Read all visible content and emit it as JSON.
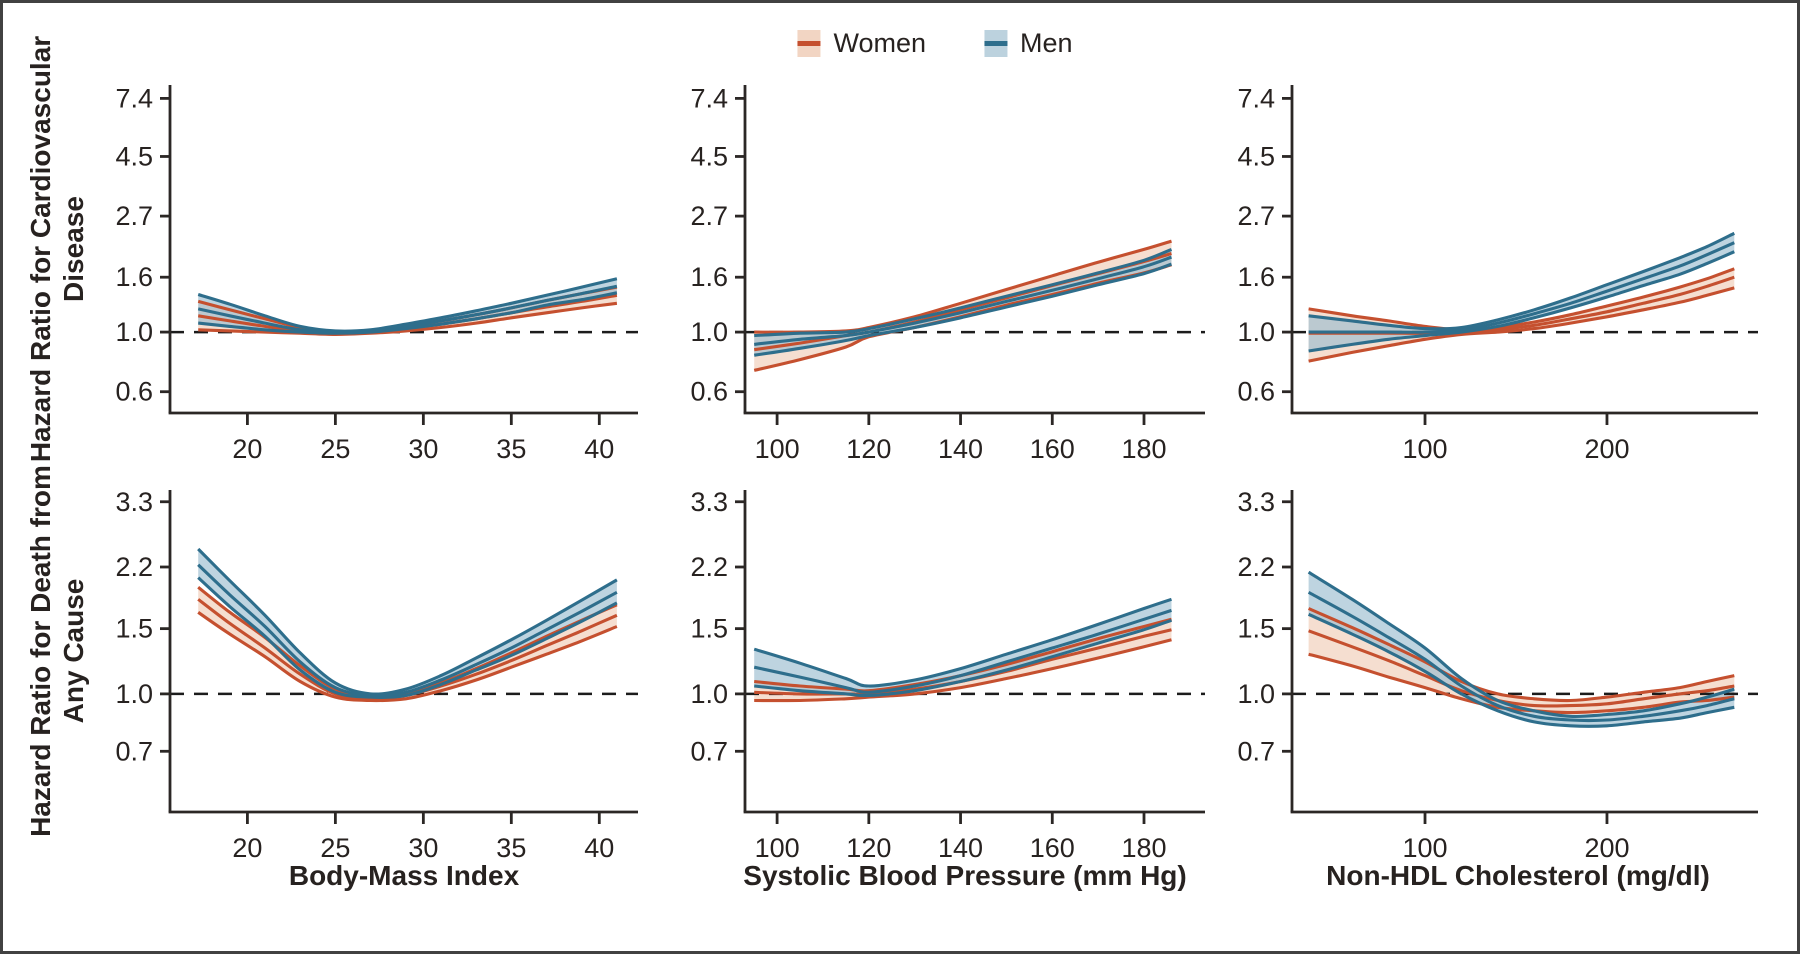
{
  "legend": {
    "items": [
      {
        "label": "Women",
        "line": "#c5502f",
        "fill": "#f2d5c3"
      },
      {
        "label": "Men",
        "line": "#2e6e8c",
        "fill": "#bcd2de"
      }
    ]
  },
  "row_labels": [
    "Hazard Ratio for Cardiovascular\nDisease",
    "Hazard Ratio for Death from\nAny Cause"
  ],
  "reference_line_value": "1.0",
  "chart_data": [
    {
      "name": "cvd-bmi",
      "type": "line",
      "row": 0,
      "col": 0,
      "xlabel": "",
      "yscale": "log",
      "ref_line": 1.0,
      "x_ticks": [
        20,
        25,
        30,
        35,
        40
      ],
      "y_ticks": [
        7.4,
        4.5,
        2.7,
        1.6,
        1.0,
        0.6
      ],
      "xlim": [
        15.6,
        42.2
      ],
      "ylim": [
        0.5,
        8.3
      ],
      "x": [
        17.2,
        19,
        21,
        23,
        25,
        27,
        29,
        31,
        33,
        35,
        37,
        39,
        41
      ],
      "series": [
        {
          "name": "Women",
          "color": "#c5502f",
          "fill": "#f0cdb8",
          "upper": [
            1.3,
            1.21,
            1.12,
            1.04,
            1.0,
            1.01,
            1.05,
            1.1,
            1.16,
            1.23,
            1.31,
            1.39,
            1.47
          ],
          "center": [
            1.15,
            1.1,
            1.05,
            1.01,
            0.99,
            1.0,
            1.03,
            1.07,
            1.12,
            1.18,
            1.24,
            1.3,
            1.37
          ],
          "lower": [
            1.02,
            1.01,
            1.0,
            0.99,
            0.98,
            0.99,
            1.01,
            1.04,
            1.08,
            1.13,
            1.18,
            1.23,
            1.28
          ]
        },
        {
          "name": "Men",
          "color": "#2e6e8c",
          "fill": "#9cbed0",
          "upper": [
            1.38,
            1.27,
            1.15,
            1.05,
            1.01,
            1.02,
            1.07,
            1.13,
            1.2,
            1.28,
            1.37,
            1.47,
            1.58
          ],
          "center": [
            1.22,
            1.15,
            1.08,
            1.02,
            1.0,
            1.01,
            1.05,
            1.1,
            1.16,
            1.23,
            1.31,
            1.39,
            1.48
          ],
          "lower": [
            1.08,
            1.05,
            1.02,
            1.0,
            0.99,
            1.0,
            1.03,
            1.07,
            1.12,
            1.18,
            1.26,
            1.32,
            1.4
          ]
        }
      ]
    },
    {
      "name": "cvd-sbp",
      "type": "line",
      "row": 0,
      "col": 1,
      "xlabel": "",
      "yscale": "log",
      "ref_line": 1.0,
      "x_ticks": [
        100,
        120,
        140,
        160,
        180
      ],
      "y_ticks": [
        7.4,
        4.5,
        2.7,
        1.6,
        1.0,
        0.6
      ],
      "xlim": [
        93,
        193.3
      ],
      "ylim": [
        0.5,
        8.3
      ],
      "x": [
        95,
        105,
        115,
        120,
        130,
        140,
        150,
        160,
        170,
        180,
        186
      ],
      "series": [
        {
          "name": "Women",
          "color": "#c5502f",
          "fill": "#f0cdb8",
          "upper": [
            1.0,
            1.0,
            1.01,
            1.04,
            1.14,
            1.28,
            1.44,
            1.62,
            1.82,
            2.03,
            2.18
          ],
          "center": [
            0.86,
            0.91,
            0.97,
            1.0,
            1.09,
            1.21,
            1.34,
            1.49,
            1.65,
            1.83,
            1.96
          ],
          "lower": [
            0.72,
            0.79,
            0.88,
            0.96,
            1.04,
            1.14,
            1.26,
            1.38,
            1.52,
            1.66,
            1.78
          ]
        },
        {
          "name": "Men",
          "color": "#2e6e8c",
          "fill": "#9cbed0",
          "upper": [
            0.97,
            0.99,
            1.0,
            1.03,
            1.12,
            1.23,
            1.36,
            1.5,
            1.66,
            1.85,
            2.03
          ],
          "center": [
            0.9,
            0.94,
            0.97,
            1.0,
            1.08,
            1.18,
            1.3,
            1.43,
            1.58,
            1.75,
            1.9
          ],
          "lower": [
            0.82,
            0.87,
            0.93,
            0.97,
            1.04,
            1.13,
            1.24,
            1.36,
            1.5,
            1.65,
            1.79
          ]
        }
      ]
    },
    {
      "name": "cvd-nonhdl",
      "type": "line",
      "row": 0,
      "col": 2,
      "xlabel": "",
      "yscale": "log",
      "ref_line": 1.0,
      "x_ticks": [
        100,
        200
      ],
      "y_ticks": [
        7.4,
        4.5,
        2.7,
        1.6,
        1.0,
        0.6
      ],
      "xlim": [
        26.9,
        283
      ],
      "ylim": [
        0.5,
        8.3
      ],
      "x": [
        36,
        60,
        80,
        100,
        120,
        140,
        160,
        180,
        200,
        220,
        240,
        255,
        270
      ],
      "series": [
        {
          "name": "Women",
          "color": "#c5502f",
          "fill": "#f0cdb8",
          "upper": [
            1.22,
            1.15,
            1.1,
            1.05,
            1.02,
            1.04,
            1.09,
            1.16,
            1.25,
            1.35,
            1.47,
            1.58,
            1.72
          ],
          "center": [
            0.99,
            0.99,
            0.99,
            0.99,
            1.0,
            1.02,
            1.06,
            1.12,
            1.19,
            1.28,
            1.38,
            1.48,
            1.6
          ],
          "lower": [
            0.78,
            0.84,
            0.89,
            0.94,
            0.98,
            1.0,
            1.03,
            1.08,
            1.14,
            1.21,
            1.29,
            1.37,
            1.46
          ]
        },
        {
          "name": "Men",
          "color": "#2e6e8c",
          "fill": "#9cbed0",
          "upper": [
            1.15,
            1.1,
            1.06,
            1.03,
            1.04,
            1.11,
            1.21,
            1.34,
            1.5,
            1.68,
            1.89,
            2.08,
            2.33
          ],
          "center": [
            1.0,
            1.0,
            1.0,
            1.0,
            1.02,
            1.08,
            1.17,
            1.28,
            1.42,
            1.58,
            1.76,
            1.94,
            2.15
          ],
          "lower": [
            0.85,
            0.9,
            0.94,
            0.97,
            1.0,
            1.05,
            1.13,
            1.23,
            1.35,
            1.49,
            1.64,
            1.8,
            1.99
          ]
        }
      ]
    },
    {
      "name": "death-bmi",
      "type": "line",
      "row": 1,
      "col": 0,
      "xlabel": "Body-Mass Index",
      "yscale": "log",
      "ref_line": 1.0,
      "x_ticks": [
        20,
        25,
        30,
        35,
        40
      ],
      "y_ticks": [
        3.3,
        2.2,
        1.5,
        1.0,
        0.7
      ],
      "xlim": [
        15.6,
        42.2
      ],
      "ylim": [
        0.48,
        3.55
      ],
      "x": [
        17.2,
        19,
        21,
        23,
        25,
        27,
        29,
        31,
        33,
        35,
        37,
        39,
        41
      ],
      "series": [
        {
          "name": "Women",
          "color": "#c5502f",
          "fill": "#f0cdb8",
          "upper": [
            1.94,
            1.66,
            1.42,
            1.19,
            1.03,
            0.98,
            1.0,
            1.07,
            1.17,
            1.29,
            1.43,
            1.58,
            1.74
          ],
          "center": [
            1.8,
            1.55,
            1.33,
            1.13,
            1.0,
            0.97,
            0.99,
            1.05,
            1.13,
            1.23,
            1.35,
            1.48,
            1.63
          ],
          "lower": [
            1.66,
            1.45,
            1.26,
            1.08,
            0.98,
            0.96,
            0.97,
            1.02,
            1.09,
            1.18,
            1.28,
            1.39,
            1.52
          ]
        },
        {
          "name": "Men",
          "color": "#2e6e8c",
          "fill": "#9cbed0",
          "upper": [
            2.46,
            2.02,
            1.63,
            1.29,
            1.07,
            1.0,
            1.03,
            1.12,
            1.25,
            1.4,
            1.58,
            1.79,
            2.03
          ],
          "center": [
            2.23,
            1.85,
            1.52,
            1.22,
            1.04,
            0.99,
            1.01,
            1.09,
            1.2,
            1.33,
            1.49,
            1.67,
            1.88
          ],
          "lower": [
            2.06,
            1.72,
            1.43,
            1.16,
            1.01,
            0.98,
            0.99,
            1.06,
            1.16,
            1.27,
            1.41,
            1.57,
            1.76
          ]
        }
      ]
    },
    {
      "name": "death-sbp",
      "type": "line",
      "row": 1,
      "col": 1,
      "xlabel": "Systolic Blood Pressure (mm Hg)",
      "yscale": "log",
      "ref_line": 1.0,
      "x_ticks": [
        100,
        120,
        140,
        160,
        180
      ],
      "y_ticks": [
        3.3,
        2.2,
        1.5,
        1.0,
        0.7
      ],
      "xlim": [
        93,
        193.3
      ],
      "ylim": [
        0.48,
        3.55
      ],
      "x": [
        95,
        105,
        115,
        120,
        130,
        140,
        150,
        160,
        170,
        180,
        186
      ],
      "series": [
        {
          "name": "Women",
          "color": "#c5502f",
          "fill": "#f0cdb8",
          "upper": [
            1.08,
            1.05,
            1.03,
            1.02,
            1.06,
            1.12,
            1.2,
            1.3,
            1.41,
            1.52,
            1.59
          ],
          "center": [
            1.01,
            1.0,
            1.0,
            1.0,
            1.03,
            1.08,
            1.15,
            1.24,
            1.33,
            1.43,
            1.49
          ],
          "lower": [
            0.96,
            0.96,
            0.97,
            0.98,
            1.0,
            1.04,
            1.1,
            1.17,
            1.25,
            1.34,
            1.4
          ]
        },
        {
          "name": "Men",
          "color": "#2e6e8c",
          "fill": "#9cbed0",
          "upper": [
            1.32,
            1.21,
            1.1,
            1.05,
            1.09,
            1.17,
            1.28,
            1.4,
            1.54,
            1.7,
            1.8
          ],
          "center": [
            1.18,
            1.11,
            1.04,
            1.01,
            1.05,
            1.12,
            1.22,
            1.33,
            1.45,
            1.59,
            1.68
          ],
          "lower": [
            1.05,
            1.02,
            1.0,
            0.99,
            1.02,
            1.08,
            1.16,
            1.26,
            1.37,
            1.49,
            1.58
          ]
        }
      ]
    },
    {
      "name": "death-nonhdl",
      "type": "line",
      "row": 1,
      "col": 2,
      "xlabel": "Non-HDL Cholesterol (mg/dl)",
      "yscale": "log",
      "ref_line": 1.0,
      "x_ticks": [
        100,
        200
      ],
      "y_ticks": [
        3.3,
        2.2,
        1.5,
        1.0,
        0.7
      ],
      "xlim": [
        26.9,
        283
      ],
      "ylim": [
        0.48,
        3.55
      ],
      "x": [
        36,
        60,
        80,
        100,
        120,
        140,
        160,
        180,
        200,
        220,
        240,
        255,
        270
      ],
      "series": [
        {
          "name": "Women",
          "color": "#c5502f",
          "fill": "#f0cdb8",
          "upper": [
            1.7,
            1.51,
            1.36,
            1.22,
            1.08,
            1.0,
            0.97,
            0.96,
            0.98,
            1.01,
            1.04,
            1.08,
            1.12
          ],
          "center": [
            1.48,
            1.34,
            1.23,
            1.12,
            1.02,
            0.96,
            0.93,
            0.93,
            0.94,
            0.97,
            1.0,
            1.02,
            1.05
          ],
          "lower": [
            1.28,
            1.19,
            1.11,
            1.04,
            0.97,
            0.92,
            0.9,
            0.89,
            0.9,
            0.92,
            0.95,
            0.96,
            0.98
          ]
        },
        {
          "name": "Men",
          "color": "#2e6e8c",
          "fill": "#9cbed0",
          "upper": [
            2.13,
            1.8,
            1.55,
            1.33,
            1.1,
            0.96,
            0.9,
            0.87,
            0.88,
            0.9,
            0.94,
            0.98,
            1.03
          ],
          "center": [
            1.88,
            1.62,
            1.42,
            1.24,
            1.05,
            0.93,
            0.87,
            0.85,
            0.85,
            0.87,
            0.9,
            0.93,
            0.97
          ],
          "lower": [
            1.64,
            1.45,
            1.3,
            1.15,
            1.0,
            0.9,
            0.84,
            0.82,
            0.82,
            0.84,
            0.86,
            0.89,
            0.92
          ]
        }
      ]
    }
  ]
}
